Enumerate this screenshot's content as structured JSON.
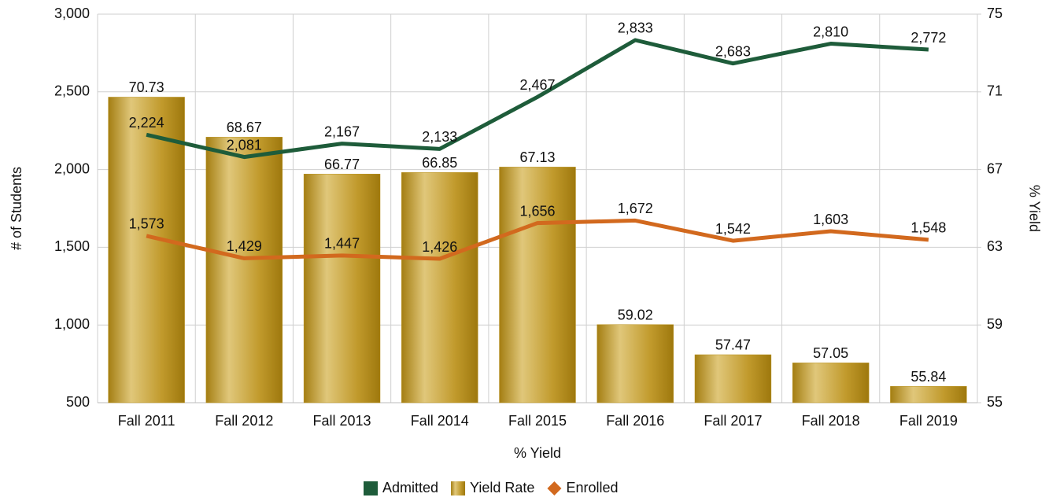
{
  "chart_data": {
    "type": "bar",
    "x_label": "% Yield",
    "y_label": "# of Students",
    "y2_label": "% Yield",
    "categories": [
      "Fall 2011",
      "Fall 2012",
      "Fall 2013",
      "Fall 2014",
      "Fall 2015",
      "Fall 2016",
      "Fall 2017",
      "Fall 2018",
      "Fall 2019"
    ],
    "series": [
      {
        "name": "Admitted",
        "type": "line",
        "color": "#1e5c3a",
        "values": [
          2224,
          2081,
          2167,
          2133,
          2467,
          2833,
          2683,
          2810,
          2772
        ],
        "value_labels": [
          "2,224",
          "2,081",
          "2,167",
          "2,133",
          "2,467",
          "2,833",
          "2,683",
          "2,810",
          "2,772"
        ]
      },
      {
        "name": "Yield Rate",
        "type": "bar",
        "axis": "y2",
        "color": "#b8901c",
        "values": [
          70.73,
          68.67,
          66.77,
          66.85,
          67.13,
          59.02,
          57.47,
          57.05,
          55.84
        ]
      },
      {
        "name": "Enrolled",
        "type": "line",
        "color": "#d2691e",
        "values": [
          1573,
          1429,
          1447,
          1426,
          1656,
          1672,
          1542,
          1603,
          1548
        ],
        "value_labels": [
          "1,573",
          "1,429",
          "1,447",
          "1,426",
          "1,656",
          "1,672",
          "1,542",
          "1,603",
          "1,548"
        ]
      }
    ],
    "ylim": [
      500,
      3000
    ],
    "yticks": [
      500,
      {
        "value": 1000,
        "label": "1,000"
      },
      {
        "value": 1500,
        "label": "1,500"
      },
      {
        "value": 2000,
        "label": "2,000"
      },
      {
        "value": 2500,
        "label": "2,500"
      },
      {
        "value": 3000,
        "label": "3,000"
      }
    ],
    "y2lim": [
      55,
      75
    ],
    "y2ticks": [
      55,
      59,
      63,
      67,
      71,
      75
    ],
    "grid": true,
    "legend": "bottom"
  }
}
